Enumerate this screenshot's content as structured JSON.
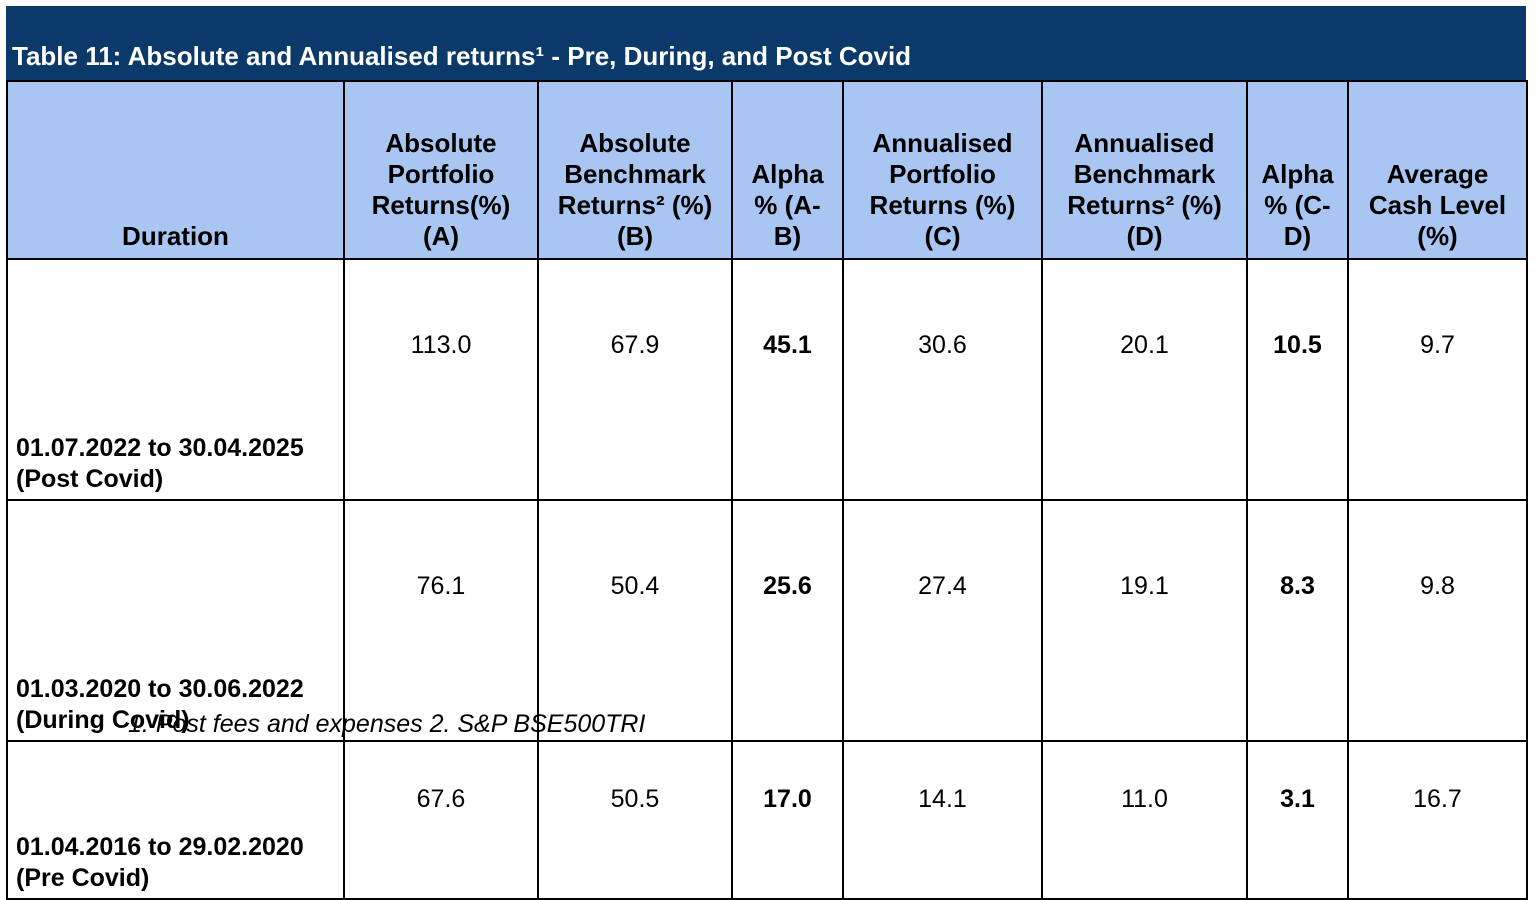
{
  "title": "Table 11: Absolute and Annualised returns¹ - Pre, During, and Post Covid",
  "colors": {
    "title_bg": "#0b3a6a",
    "header_bg": "#a9c6f2"
  },
  "headers": [
    [
      "Duration"
    ],
    [
      "Absolute",
      "Portfolio",
      "Returns(%)",
      "(A)"
    ],
    [
      "Absolute",
      "Benchmark",
      "Returns² (%)",
      "(B)"
    ],
    [
      "Alpha",
      "% (A-",
      "B)"
    ],
    [
      "Annualised",
      "Portfolio",
      "Returns (%)",
      "(C)"
    ],
    [
      "Annualised",
      "Benchmark",
      "Returns² (%)",
      "(D)"
    ],
    [
      "Alpha",
      "% (C-",
      "D)"
    ],
    [
      "Average",
      "Cash Level",
      "(%)"
    ]
  ],
  "rows": [
    {
      "duration": [
        "01.07.2022 to 30.04.2025",
        "(Post Covid)"
      ],
      "values": [
        "113.0",
        "67.9",
        "45.1",
        "30.6",
        "20.1",
        "10.5",
        "9.7"
      ]
    },
    {
      "duration": [
        "01.03.2020 to 30.06.2022",
        "(During Covid)"
      ],
      "values": [
        "76.1",
        "50.4",
        "25.6",
        "27.4",
        "19.1",
        "8.3",
        "9.8"
      ]
    },
    {
      "duration": [
        "01.04.2016 to 29.02.2020",
        "(Pre Covid)"
      ],
      "values": [
        "67.6",
        "50.5",
        "17.0",
        "14.1",
        "11.0",
        "3.1",
        "16.7"
      ]
    }
  ],
  "footnote": "1. Post fees and expenses 2. S&P BSE500TRI"
}
